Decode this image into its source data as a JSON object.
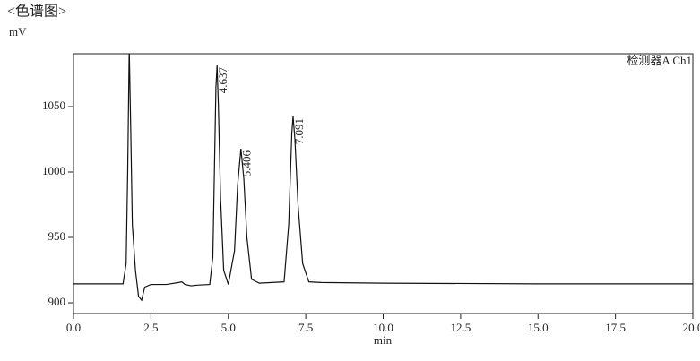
{
  "chart_data": {
    "type": "line",
    "title": "<色谱图>",
    "y_unit": "mV",
    "x_label": "min",
    "detector": "检测器A Ch1",
    "x": [
      0,
      1.6,
      1.7,
      1.75,
      1.8,
      1.85,
      1.9,
      2.0,
      2.1,
      2.2,
      2.3,
      2.5,
      3.0,
      3.4,
      3.5,
      3.6,
      3.8,
      4.0,
      4.4,
      4.5,
      4.55,
      4.6,
      4.637,
      4.68,
      4.75,
      4.85,
      5.0,
      5.2,
      5.3,
      5.406,
      5.5,
      5.6,
      5.75,
      6.0,
      6.8,
      6.95,
      7.05,
      7.091,
      7.15,
      7.25,
      7.4,
      7.6,
      8.0,
      10,
      15,
      20
    ],
    "series": [
      {
        "color": "#111111",
        "values": [
          914.5,
          914.5,
          930,
          1000,
          1095,
          1030,
          960,
          925,
          905,
          902,
          912,
          914,
          914,
          915.5,
          916,
          914,
          913,
          913.5,
          914,
          935,
          1000,
          1065,
          1081.5,
          1050,
          980,
          925,
          914,
          940,
          990,
          1017.8,
          995,
          950,
          918,
          915,
          916,
          960,
          1030,
          1042.5,
          1025,
          975,
          930,
          916,
          915.5,
          915,
          914.5,
          914.5
        ]
      }
    ],
    "peak_labels": [
      4.637,
      5.406,
      7.091
    ],
    "xlim": [
      0,
      20
    ],
    "ylim": [
      891.8,
      1090.4
    ],
    "xticks": [
      {
        "value": 0,
        "label": "0.0"
      },
      {
        "value": 2.5,
        "label": "2.5"
      },
      {
        "value": 5,
        "label": "5.0"
      },
      {
        "value": 7.5,
        "label": "7.5"
      },
      {
        "value": 10,
        "label": "10.0"
      },
      {
        "value": 12.5,
        "label": "12.5"
      },
      {
        "value": 15,
        "label": "15.0"
      },
      {
        "value": 17.5,
        "label": "17.5"
      },
      {
        "value": 20,
        "label": "20.0"
      }
    ],
    "yticks": [
      900,
      950,
      1000,
      1050
    ]
  }
}
